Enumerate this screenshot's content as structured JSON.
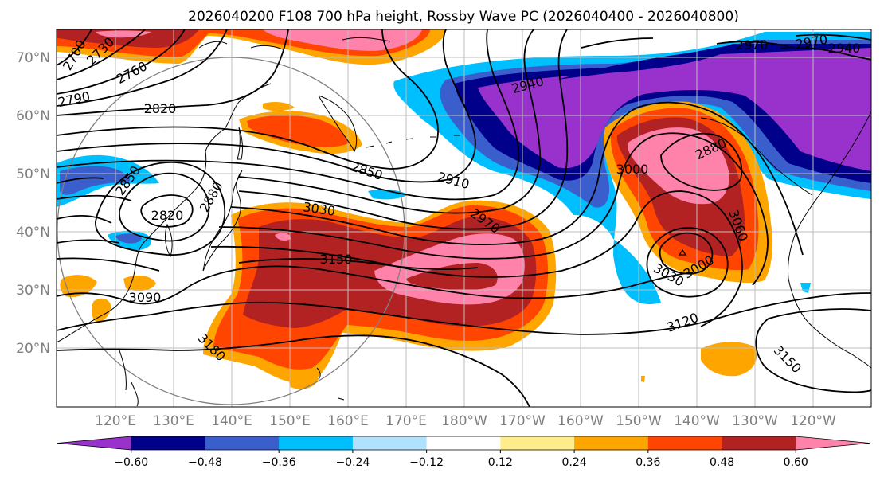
{
  "title": "2026040200 F108 700 hPa height, Rossby Wave PC (2026040400 - 2026040800)",
  "lat_labels": [
    "70°N",
    "60°N",
    "50°N",
    "40°N",
    "30°N",
    "20°N"
  ],
  "lon_labels": [
    "120°E",
    "130°E",
    "140°E",
    "150°E",
    "160°E",
    "170°E",
    "180°W",
    "170°W",
    "160°W",
    "150°W",
    "140°W",
    "130°W",
    "120°W"
  ],
  "colorbar": {
    "tick_labels": [
      "−0.60",
      "−0.48",
      "−0.36",
      "−0.24",
      "−0.12",
      "0.12",
      "0.24",
      "0.36",
      "0.48",
      "0.60"
    ],
    "colors": [
      "#9932cc",
      "#00008b",
      "#3a5fcd",
      "#00bfff",
      "#b0e2ff",
      "#ffffff",
      "#ffec8b",
      "#ffa500",
      "#ff4500",
      "#b22222",
      "#ff82ab"
    ]
  },
  "contour_labels": [
    "2700",
    "2730",
    "2760",
    "2790",
    "2820",
    "2850",
    "2820",
    "2880",
    "2850",
    "2910",
    "2940",
    "2970",
    "2970",
    "2940",
    "3000",
    "2880",
    "3030",
    "3150",
    "2970",
    "3060",
    "3000",
    "3030",
    "3090",
    "3120",
    "3180",
    "3150"
  ],
  "chart_data": {
    "type": "map",
    "title": "2026040200 F108 700 hPa height, Rossby Wave PC (2026040400 - 2026040800)",
    "variable_contours": "700 hPa geopotential height (m)",
    "contour_interval_m": 30,
    "variable_shaded": "Rossby Wave PC",
    "shading_levels": [
      -0.6,
      -0.48,
      -0.36,
      -0.24,
      -0.12,
      0.12,
      0.24,
      0.36,
      0.48,
      0.6
    ],
    "lat_range": [
      10,
      75
    ],
    "lon_range_deg_east": [
      110,
      250
    ],
    "lat_ticks": [
      70,
      60,
      50,
      40,
      30,
      20
    ],
    "lon_ticks": [
      "120°E",
      "130°E",
      "140°E",
      "150°E",
      "160°E",
      "170°E",
      "180°W",
      "170°W",
      "160°W",
      "150°W",
      "140°W",
      "130°W",
      "120°W"
    ]
  }
}
